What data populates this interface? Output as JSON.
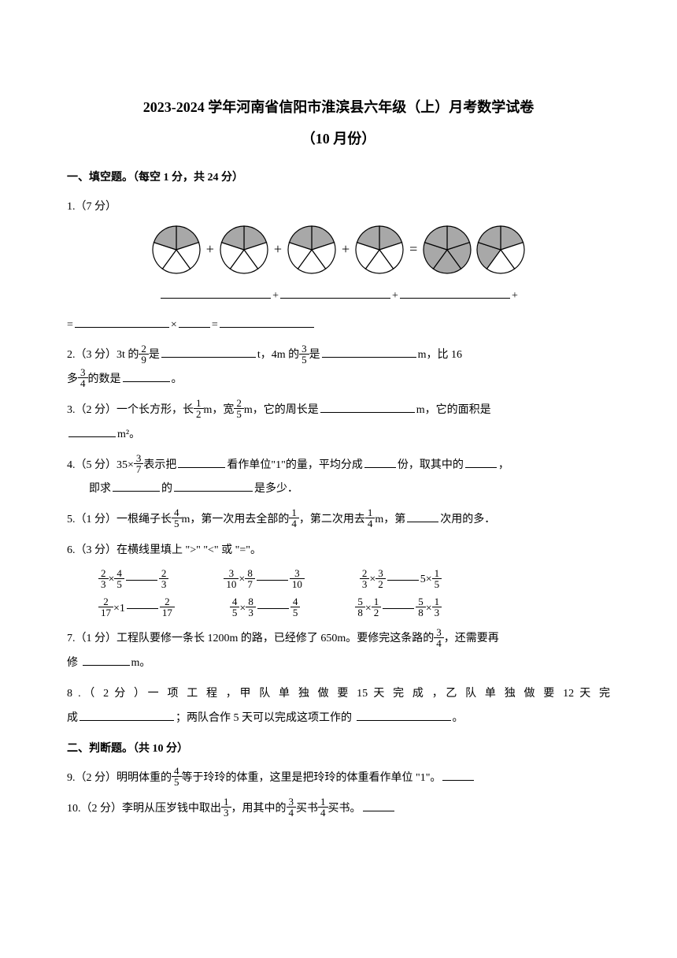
{
  "title_line1": "2023-2024 学年河南省信阳市淮滨县六年级（上）月考数学试卷",
  "title_line2": "（10 月份）",
  "section1": "一、填空题。（每空 1 分，共 24 分）",
  "q1": {
    "label": "1.（7 分）",
    "line2_prefix": "",
    "line2_plus": "+",
    "line2_eq": "=",
    "line2_mult": "×",
    "line2_eq2": "="
  },
  "q2": {
    "text_a": "2.（3 分）3t 的",
    "text_b": "是",
    "text_c": "t，4m 的",
    "text_d": "是",
    "text_e": "m，比 16",
    "text_f": "多",
    "text_g": "的数是",
    "text_h": "。",
    "f1_num": "2",
    "f1_den": "9",
    "f2_num": "3",
    "f2_den": "5",
    "f3_num": "3",
    "f3_den": "4"
  },
  "q3": {
    "text_a": "3.（2 分）一个长方形，长",
    "text_b": "m，宽",
    "text_c": "m，它的周长是",
    "text_d": "m，它的面积是",
    "text_e": "m²。",
    "f1_num": "1",
    "f1_den": "2",
    "f2_num": "2",
    "f2_den": "5"
  },
  "q4": {
    "text_a": "4.（5 分）35×",
    "text_b": "表示把",
    "text_c": "看作单位\"1\"的量，平均分成",
    "text_d": "份，取其中的",
    "text_e": "，",
    "text_f": "即求",
    "text_g": "的",
    "text_h": "是多少．",
    "f1_num": "3",
    "f1_den": "7"
  },
  "q5": {
    "text_a": "5.（1 分）一根绳子长",
    "text_b": "m，第一次用去全部的",
    "text_c": "，第二次用去",
    "text_d": "m，第",
    "text_e": "次用的多．",
    "f1_num": "4",
    "f1_den": "5",
    "f2_num": "1",
    "f2_den": "4",
    "f3_num": "1",
    "f3_den": "4"
  },
  "q6": {
    "text_a": "6.（3 分）在横线里填上 \">\" \"<\" 或 \"=\"。",
    "row1": {
      "c1": {
        "a_num": "2",
        "a_den": "3",
        "b_num": "4",
        "b_den": "5",
        "r_num": "2",
        "r_den": "3"
      },
      "c2": {
        "a_num": "3",
        "a_den": "10",
        "b_num": "8",
        "b_den": "7",
        "r_num": "3",
        "r_den": "10"
      },
      "c3": {
        "a_num": "2",
        "a_den": "3",
        "b_num": "3",
        "b_den": "2",
        "r": "5×",
        "r_num": "1",
        "r_den": "5"
      }
    },
    "row2": {
      "c1": {
        "a_num": "2",
        "a_den": "17",
        "b": "1",
        "r_num": "2",
        "r_den": "17"
      },
      "c2": {
        "a_num": "4",
        "a_den": "5",
        "b_num": "8",
        "b_den": "3",
        "r_num": "4",
        "r_den": "5"
      },
      "c3": {
        "a_num": "5",
        "a_den": "8",
        "b_num": "1",
        "b_den": "2",
        "r_num": "5",
        "r_den": "8",
        "r2_num": "1",
        "r2_den": "3"
      }
    }
  },
  "q7": {
    "text_a": "7.（1 分）工程队要修一条长 1200m 的路，已经修了 650m。要修完这条路的",
    "text_b": "，还需要再",
    "text_c": "修",
    "text_d": "m。",
    "f1_num": "3",
    "f1_den": "4"
  },
  "q8": {
    "text_a": "8 .（ 2 分 ）一 项 工 程 ，甲 队 单 独 做 要 15 天 完 成 ，乙 队 单 独 做 要 12 天 完",
    "text_b": "成",
    "text_c": "；两队合作 5 天可以完成这项工作的",
    "text_d": "。"
  },
  "section2": "二、判断题。（共 10 分）",
  "q9": {
    "text_a": "9.（2 分）明明体重的",
    "text_b": "等于玲玲的体重，这里是把玲玲的体重看作单位 \"1\"。",
    "f1_num": "4",
    "f1_den": "5"
  },
  "q10": {
    "text_a": "10.（2 分）李明从压岁钱中取出",
    "text_b": "，用其中的",
    "text_c": "买书",
    "text_d": "买书。",
    "f1_num": "1",
    "f1_den": "3",
    "f2_num": "3",
    "f2_den": "4",
    "f3_num": "1",
    "f3_den": "4"
  },
  "pie": {
    "shaded": "#a8a8a8",
    "unshaded": "#ffffff",
    "stroke": "#000000",
    "radius": 30,
    "pies": [
      {
        "shadedSlices": [
          0,
          4
        ]
      },
      {
        "shadedSlices": [
          0,
          4
        ]
      },
      {
        "shadedSlices": [
          0,
          4
        ]
      },
      {
        "shadedSlices": [
          0,
          4
        ]
      },
      {
        "shadedSlices": [
          0,
          1,
          2,
          3,
          4
        ]
      },
      {
        "shadedSlices": [
          0,
          3,
          4
        ]
      }
    ]
  }
}
